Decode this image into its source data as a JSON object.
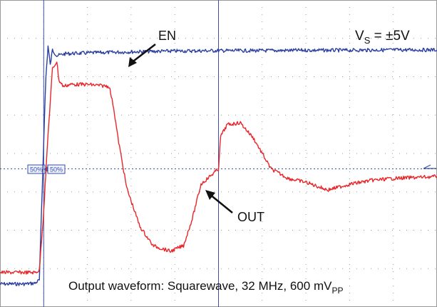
{
  "chart_data": {
    "type": "line",
    "title": "",
    "xlabel": "",
    "ylabel": "",
    "grid": true,
    "grid_divisions": {
      "x": 10,
      "y": 8
    },
    "xlim": [
      0,
      10
    ],
    "ylim": [
      0,
      8
    ],
    "series": [
      {
        "name": "EN",
        "color": "#2b3fa0",
        "x": [
          0,
          0.4,
          0.55,
          0.8,
          0.9,
          1.0,
          1.05,
          1.1,
          1.15,
          1.2,
          1.3,
          1.5,
          2,
          3,
          4,
          5,
          6,
          7,
          8,
          9,
          10
        ],
        "y": [
          0.6,
          0.6,
          0.6,
          0.62,
          0.7,
          4.3,
          6.0,
          6.8,
          6.3,
          6.7,
          6.55,
          6.6,
          6.62,
          6.65,
          6.67,
          6.68,
          6.68,
          6.69,
          6.69,
          6.7,
          6.7
        ]
      },
      {
        "name": "OUT",
        "color": "#e8262b",
        "x": [
          0,
          0.8,
          0.9,
          1.0,
          1.1,
          1.2,
          1.3,
          1.35,
          1.45,
          1.6,
          2.0,
          2.5,
          2.6,
          2.7,
          2.9,
          3.2,
          3.5,
          3.9,
          4.2,
          4.4,
          4.6,
          4.9,
          5.0,
          5.05,
          5.2,
          5.5,
          5.8,
          6.2,
          6.6,
          7.0,
          7.5,
          8.0,
          8.5,
          9.0,
          10.0
        ],
        "y": [
          0.9,
          0.9,
          0.95,
          2.5,
          4.5,
          6.2,
          6.4,
          5.9,
          5.75,
          5.8,
          5.8,
          5.75,
          5.2,
          4.4,
          3.1,
          2.1,
          1.6,
          1.45,
          1.6,
          2.3,
          3.2,
          3.5,
          3.6,
          4.45,
          4.75,
          4.8,
          4.4,
          3.6,
          3.35,
          3.25,
          3.05,
          3.2,
          3.3,
          3.35,
          3.4
        ]
      }
    ],
    "markers": {
      "x_trigger": 1.0,
      "x_center": 5.0,
      "y_level": 3.6
    },
    "threshold_labels": [
      "50%",
      "50%"
    ],
    "annotations": [
      {
        "text": "EN",
        "target_series": "EN"
      },
      {
        "text": "OUT",
        "target_series": "OUT"
      },
      {
        "text": "V_S = ±5V"
      },
      {
        "text": "Output waveform: Squarewave, 32 MHz, 600 mV_PP"
      }
    ]
  },
  "labels": {
    "en": "EN",
    "out": "OUT",
    "vs_main": "V",
    "vs_sub": "S",
    "vs_rest": " = ±5V",
    "caption_main": "Output waveform: Squarewave, 32 MHz, 600 mV",
    "caption_sub": "PP",
    "thr_left": "50%",
    "thr_right": "50%"
  },
  "colors": {
    "en": "#2b3fa0",
    "out": "#e8262b",
    "grid_dot": "#9a9a9a",
    "marker": "#3b4fa8",
    "text": "#111111"
  }
}
